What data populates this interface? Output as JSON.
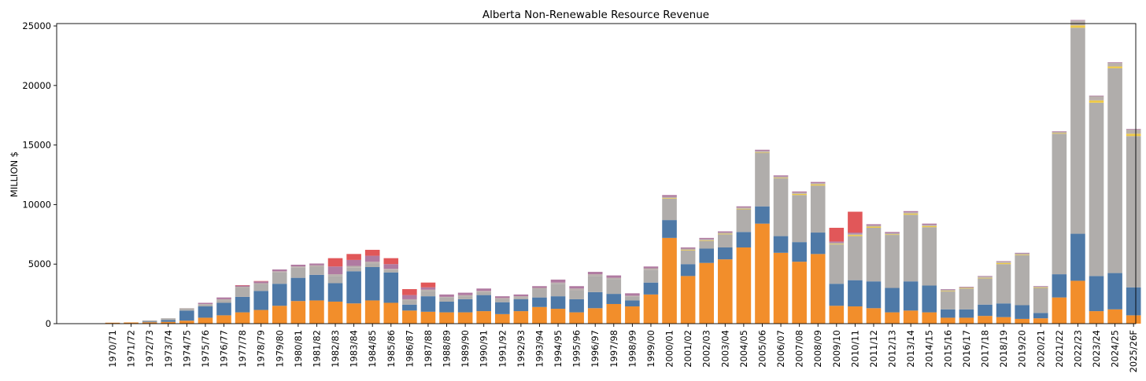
{
  "chart_data": {
    "type": "bar",
    "stacked": true,
    "title": "Alberta Non-Renewable Resource Revenue",
    "xlabel": "",
    "ylabel": "MILLION $",
    "ylim": [
      0,
      25200
    ],
    "yticks": [
      0,
      5000,
      10000,
      15000,
      20000,
      25000
    ],
    "yticklabels": [
      "0",
      "5000",
      "10000",
      "15000",
      "20000",
      "25000"
    ],
    "legend": "none",
    "categories": [
      "1970/71",
      "1971/72",
      "1972/73",
      "1973/74",
      "1974/75",
      "1975/76",
      "1976/77",
      "1977/78",
      "1978/79",
      "1979/80",
      "1980/81",
      "1981/82",
      "1982/83",
      "1983/84",
      "1984/85",
      "1985/86",
      "1986/87",
      "1987/88",
      "1988/89",
      "1989/90",
      "1990/91",
      "1991/92",
      "1992/93",
      "1993/94",
      "1994/95",
      "1995/96",
      "1996/97",
      "1997/98",
      "1998/99",
      "1999/00",
      "2000/01",
      "2001/02",
      "2002/03",
      "2003/04",
      "2004/05",
      "2005/06",
      "2006/07",
      "2007/08",
      "2008/09",
      "2009/10",
      "2010/11",
      "2011/12",
      "2012/13",
      "2013/14",
      "2014/15",
      "2015/16",
      "2016/17",
      "2017/18",
      "2018/19",
      "2019/20",
      "2020/21",
      "2021/22",
      "2022/23",
      "2023/24",
      "2024/25",
      "2025/26F"
    ],
    "series": [
      {
        "name": "orange",
        "color": "#f28e2b",
        "values": [
          80,
          100,
          120,
          150,
          250,
          500,
          700,
          950,
          1150,
          1500,
          1900,
          1950,
          1850,
          1700,
          1950,
          1750,
          1100,
          1000,
          950,
          950,
          1050,
          800,
          1050,
          1400,
          1250,
          950,
          1300,
          1650,
          1450,
          2450,
          7200,
          4000,
          5100,
          5400,
          6400,
          8400,
          5950,
          5200,
          5850,
          1500,
          1450,
          1300,
          950,
          1100,
          950,
          500,
          500,
          650,
          550,
          400,
          450,
          2200,
          3600,
          1050,
          1200,
          700
        ]
      },
      {
        "name": "blue",
        "color": "#4e79a7",
        "values": [
          0,
          0,
          50,
          150,
          850,
          950,
          1050,
          1300,
          1600,
          1850,
          1950,
          2150,
          1550,
          2700,
          2800,
          2550,
          500,
          1300,
          900,
          1100,
          1350,
          1000,
          1000,
          800,
          1050,
          1100,
          1350,
          850,
          500,
          1000,
          1500,
          1000,
          1200,
          1000,
          1300,
          1450,
          1400,
          1650,
          1800,
          1850,
          2200,
          2250,
          2050,
          2450,
          2250,
          700,
          700,
          950,
          1150,
          1150,
          450,
          1950,
          3950,
          2950,
          3050,
          2350
        ]
      },
      {
        "name": "gray",
        "color": "#b0adab",
        "values": [
          0,
          0,
          100,
          150,
          150,
          150,
          200,
          750,
          550,
          950,
          850,
          650,
          600,
          300,
          300,
          200,
          350,
          450,
          350,
          250,
          250,
          250,
          150,
          700,
          1050,
          750,
          1350,
          1250,
          300,
          1050,
          1800,
          1150,
          650,
          1100,
          1900,
          4500,
          4850,
          3950,
          3950,
          3300,
          3700,
          4500,
          4450,
          5600,
          4900,
          1500,
          1750,
          2200,
          3300,
          4200,
          2100,
          11800,
          17300,
          14550,
          17200,
          12700
        ]
      },
      {
        "name": "yellow",
        "color": "#edc948",
        "values": [
          0,
          0,
          0,
          0,
          0,
          0,
          0,
          0,
          0,
          0,
          0,
          0,
          0,
          0,
          0,
          0,
          0,
          0,
          0,
          0,
          0,
          0,
          0,
          0,
          0,
          0,
          0,
          0,
          0,
          0,
          50,
          50,
          50,
          50,
          50,
          50,
          50,
          100,
          100,
          50,
          100,
          100,
          50,
          100,
          100,
          50,
          50,
          50,
          100,
          50,
          50,
          50,
          200,
          200,
          150,
          200
        ]
      },
      {
        "name": "light-gray",
        "color": "#bab0ac",
        "values": [
          0,
          0,
          0,
          0,
          50,
          50,
          100,
          100,
          100,
          100,
          100,
          150,
          150,
          150,
          150,
          100,
          100,
          100,
          50,
          100,
          100,
          100,
          100,
          100,
          100,
          150,
          150,
          100,
          100,
          150,
          100,
          100,
          100,
          100,
          100,
          100,
          100,
          100,
          100,
          100,
          100,
          100,
          100,
          100,
          100,
          100,
          50,
          100,
          100,
          100,
          50,
          100,
          400,
          350,
          300,
          350
        ]
      },
      {
        "name": "purple",
        "color": "#b07aa1",
        "values": [
          0,
          0,
          0,
          0,
          0,
          100,
          150,
          100,
          150,
          150,
          150,
          150,
          650,
          500,
          500,
          400,
          350,
          200,
          200,
          200,
          200,
          150,
          150,
          150,
          250,
          200,
          200,
          200,
          200,
          150,
          150,
          100,
          100,
          100,
          100,
          100,
          100,
          100,
          100,
          100,
          100,
          100,
          100,
          100,
          100,
          50,
          50,
          50,
          50,
          50,
          50,
          50,
          50,
          50,
          50,
          50
        ]
      },
      {
        "name": "red",
        "color": "#e15759",
        "values": [
          0,
          0,
          0,
          0,
          0,
          0,
          0,
          30,
          30,
          0,
          0,
          0,
          700,
          500,
          500,
          500,
          500,
          400,
          0,
          0,
          0,
          0,
          0,
          0,
          0,
          0,
          0,
          0,
          0,
          0,
          0,
          0,
          0,
          0,
          0,
          0,
          0,
          0,
          0,
          1150,
          1750,
          0,
          0,
          0,
          0,
          0,
          0,
          0,
          0,
          0,
          0,
          0,
          0,
          0,
          0,
          0
        ]
      }
    ]
  }
}
